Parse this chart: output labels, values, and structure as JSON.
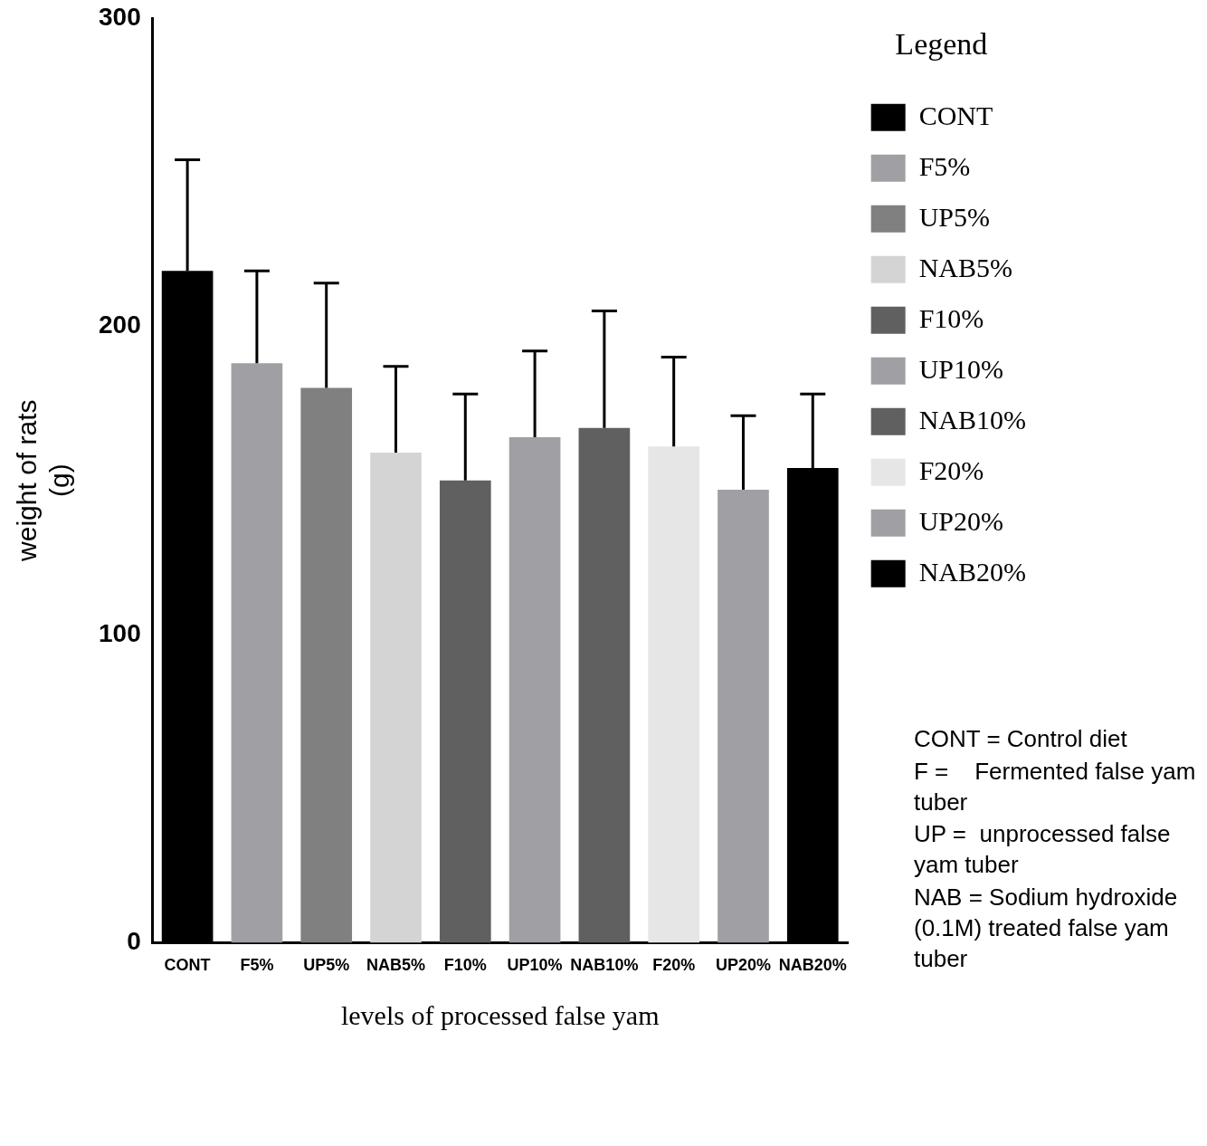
{
  "chart_data": {
    "type": "bar",
    "xlabel": "levels of processed false yam",
    "ylabel": "weight of rats\n(g)",
    "legend_title": "Legend",
    "categories": [
      "CONT",
      "F5%",
      "UP5%",
      "NAB5%",
      "F10%",
      "UP10%",
      "NAB10%",
      "F20%",
      "UP20%",
      "NAB20%"
    ],
    "series": [
      {
        "name": "CONT",
        "color": "#000000",
        "values": [
          218,
          null,
          null,
          null,
          null,
          null,
          null,
          null,
          null,
          null
        ],
        "errors": [
          [
            218,
            254
          ],
          null,
          null,
          null,
          null,
          null,
          null,
          null,
          null,
          null
        ]
      },
      {
        "name": "F5%",
        "color": "#a0a0a4",
        "values": [
          null,
          188,
          null,
          null,
          null,
          null,
          null,
          null,
          null,
          null
        ],
        "errors": [
          null,
          [
            188,
            218
          ],
          null,
          null,
          null,
          null,
          null,
          null,
          null,
          null
        ]
      },
      {
        "name": "UP5%",
        "color": "#808080",
        "values": [
          null,
          null,
          180,
          null,
          null,
          null,
          null,
          null,
          null,
          null
        ],
        "errors": [
          null,
          null,
          [
            180,
            214
          ],
          null,
          null,
          null,
          null,
          null,
          null,
          null
        ]
      },
      {
        "name": "NAB5%",
        "color": "#d4d4d4",
        "values": [
          null,
          null,
          null,
          159,
          null,
          null,
          null,
          null,
          null,
          null
        ],
        "errors": [
          null,
          null,
          null,
          [
            159,
            187
          ],
          null,
          null,
          null,
          null,
          null,
          null
        ]
      },
      {
        "name": "F10%",
        "color": "#606060",
        "values": [
          null,
          null,
          null,
          null,
          150,
          null,
          null,
          null,
          null,
          null
        ],
        "errors": [
          null,
          null,
          null,
          null,
          [
            150,
            178
          ],
          null,
          null,
          null,
          null,
          null
        ]
      },
      {
        "name": "UP10%",
        "color": "#a0a0a4",
        "values": [
          null,
          null,
          null,
          null,
          null,
          164,
          null,
          null,
          null,
          null
        ],
        "errors": [
          null,
          null,
          null,
          null,
          null,
          [
            164,
            192
          ],
          null,
          null,
          null,
          null
        ]
      },
      {
        "name": "NAB10%",
        "color": "#606060",
        "values": [
          null,
          null,
          null,
          null,
          null,
          null,
          167,
          null,
          null,
          null
        ],
        "errors": [
          null,
          null,
          null,
          null,
          null,
          null,
          [
            167,
            205
          ],
          null,
          null,
          null
        ]
      },
      {
        "name": "F20%",
        "color": "#e6e6e6",
        "values": [
          null,
          null,
          null,
          null,
          null,
          null,
          null,
          161,
          null,
          null
        ],
        "errors": [
          null,
          null,
          null,
          null,
          null,
          null,
          null,
          [
            161,
            190
          ],
          null,
          null
        ]
      },
      {
        "name": "UP20%",
        "color": "#a0a0a4",
        "values": [
          null,
          null,
          null,
          null,
          null,
          null,
          null,
          null,
          147,
          null
        ],
        "errors": [
          null,
          null,
          null,
          null,
          null,
          null,
          null,
          null,
          [
            147,
            171
          ],
          null
        ]
      },
      {
        "name": "NAB20%",
        "color": "#000000",
        "values": [
          null,
          null,
          null,
          null,
          null,
          null,
          null,
          null,
          null,
          154
        ],
        "errors": [
          null,
          null,
          null,
          null,
          null,
          null,
          null,
          null,
          null,
          [
            154,
            178
          ]
        ]
      }
    ],
    "ylim": [
      0,
      300
    ],
    "yticks": [
      0,
      100,
      200,
      300
    ],
    "grid": false,
    "legend": "top right",
    "annotations": [
      "CONT = Control diet",
      "F =    Fermented false yam tuber",
      "UP =  unprocessed false yam tuber",
      "NAB = Sodium hydroxide (0.1M) treated false yam tuber"
    ]
  }
}
